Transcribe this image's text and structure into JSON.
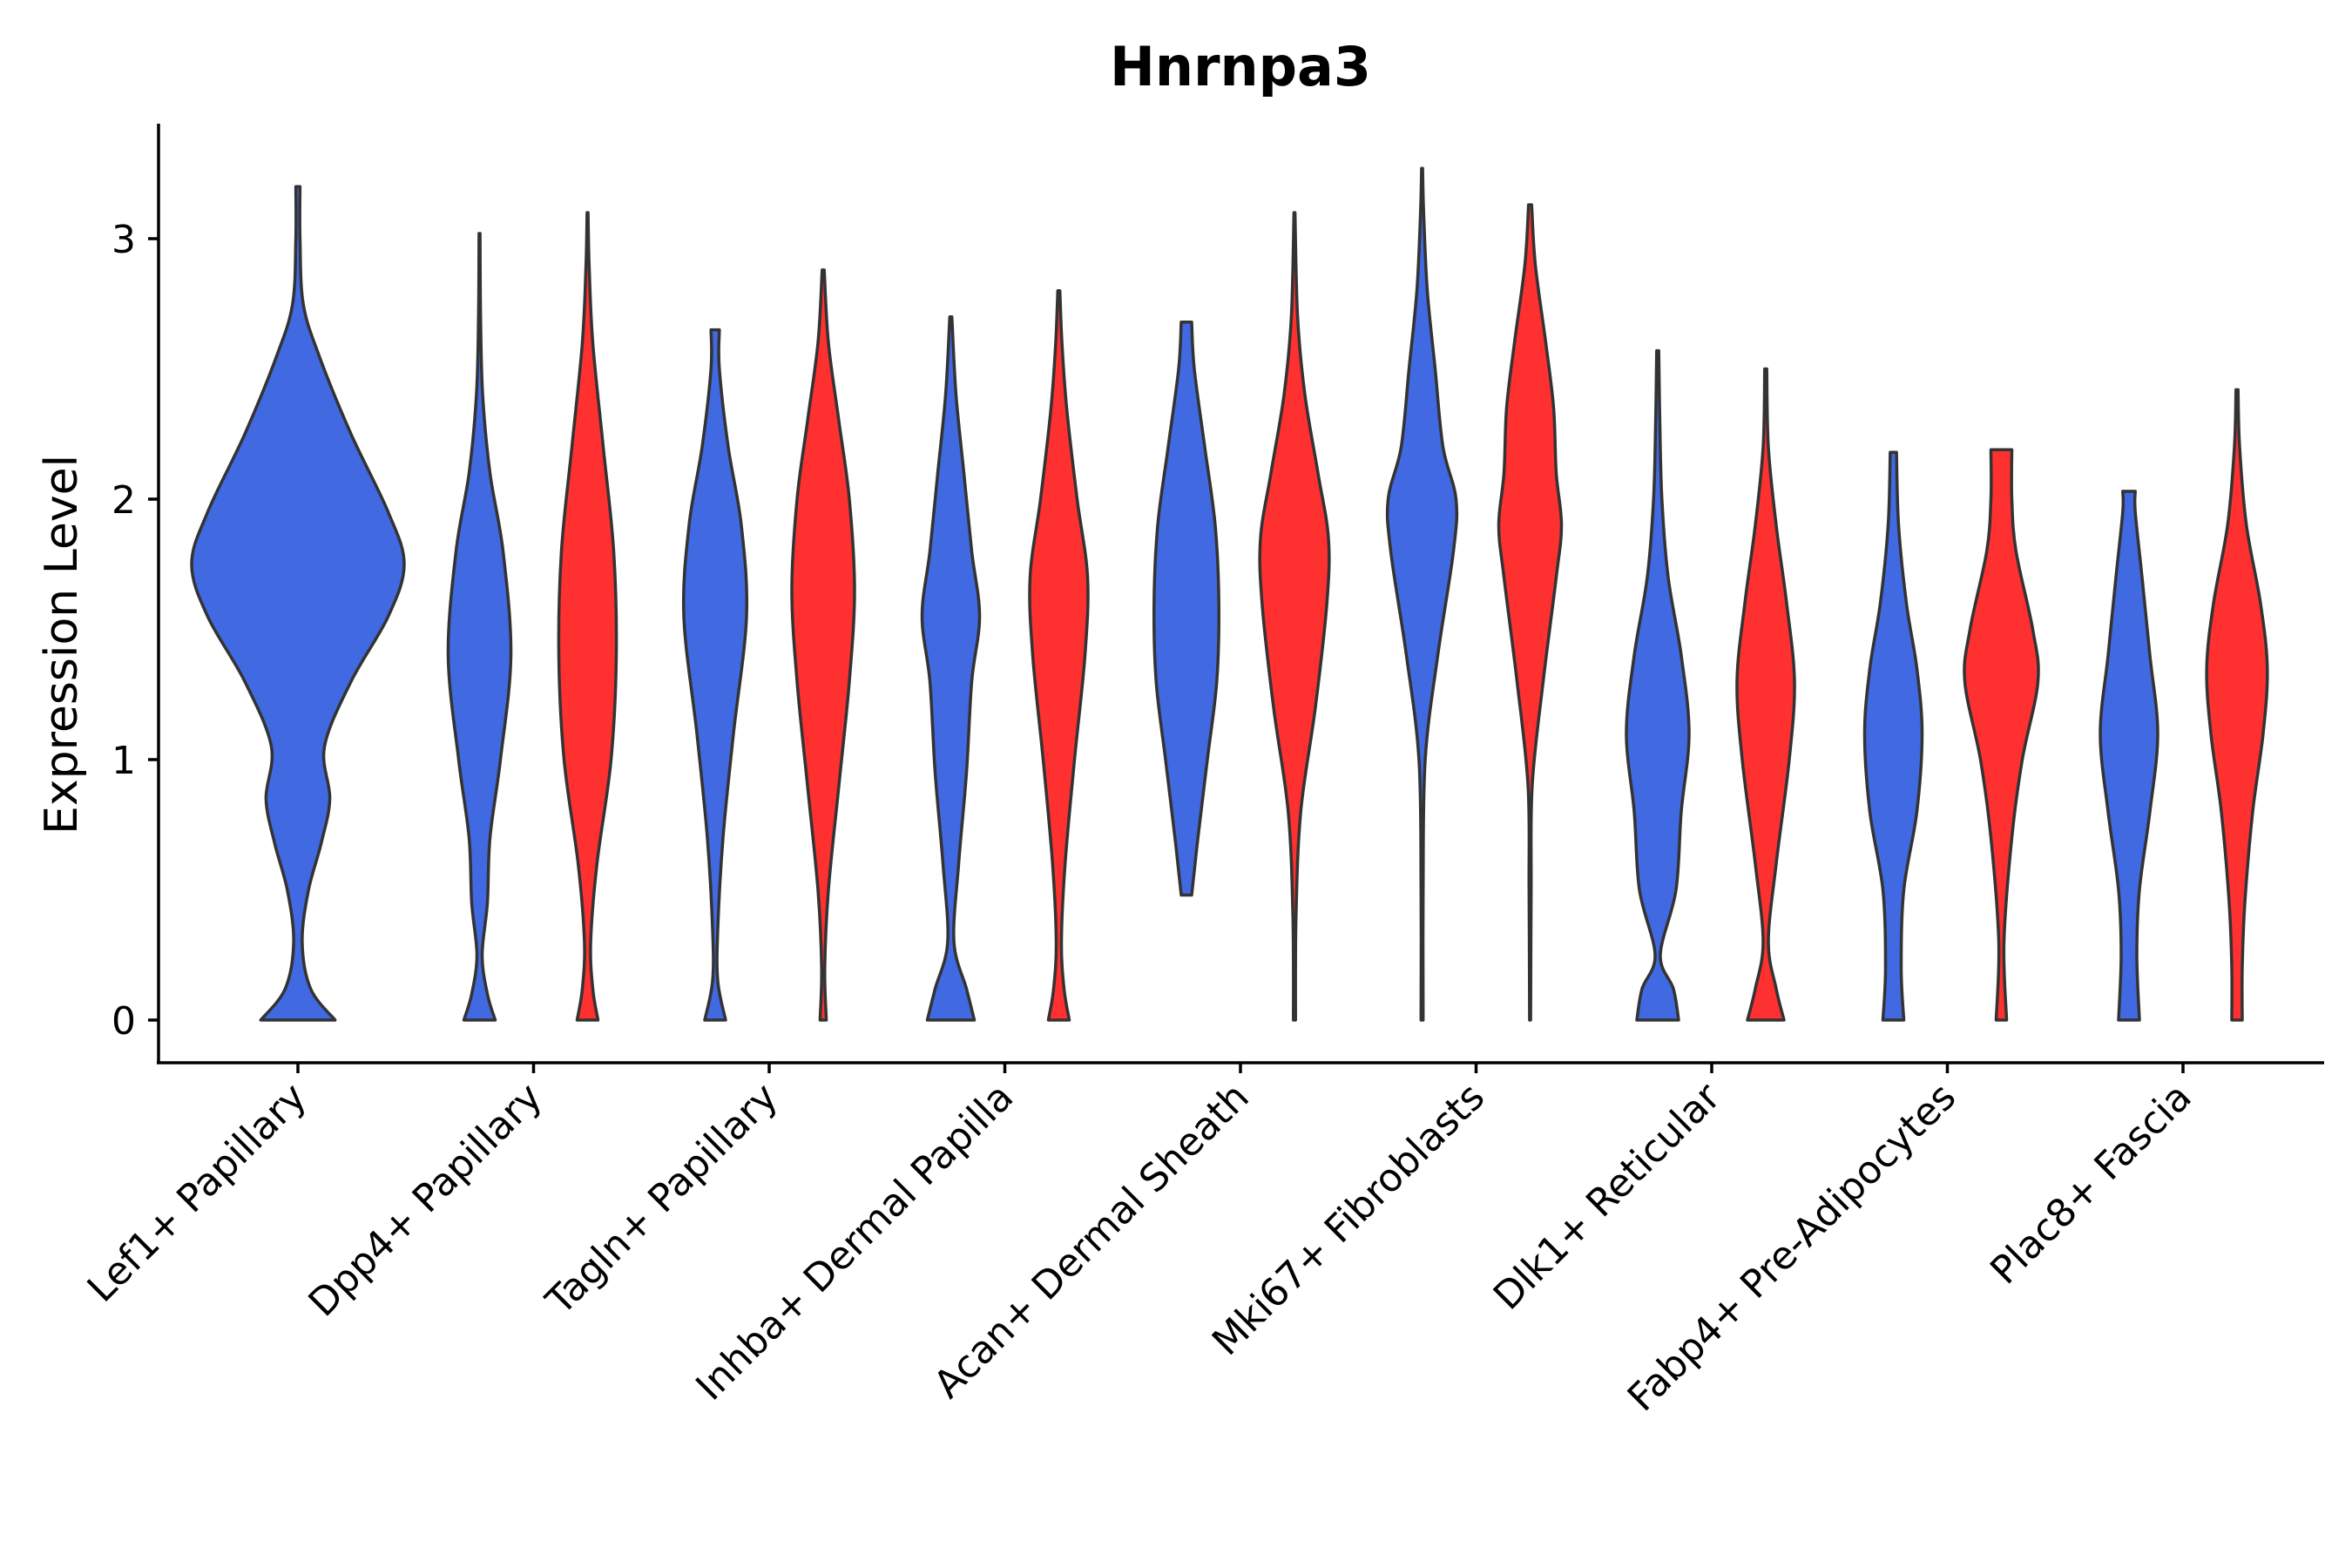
{
  "chart_data": {
    "type": "violin",
    "title": "Hnrnpa3",
    "xlabel": "",
    "ylabel": "Expression Level",
    "ylim": [
      -0.17,
      3.45
    ],
    "yticks": [
      0,
      1,
      2,
      3
    ],
    "grid": false,
    "legend": "none",
    "colors": {
      "group_a": "#4169E1",
      "group_b": "#FF3030",
      "outline": "#333333"
    },
    "categories": [
      "Lef1+ Papillary",
      "Dpp4+ Papillary",
      "Tagln+ Papillary",
      "Inhba+ Dermal Papilla",
      "Acan+ Dermal Sheath",
      "Mki67+ Fibroblasts",
      "Dlk1+ Reticular",
      "Fabp4+ Pre-Adipocytes",
      "Plac8+ Fascia"
    ],
    "violins": [
      {
        "category": 0,
        "group": "a",
        "profile": [
          [
            0,
            0.35
          ],
          [
            0.12,
            0.12
          ],
          [
            0.3,
            0.04
          ],
          [
            0.5,
            0.1
          ],
          [
            0.68,
            0.22
          ],
          [
            0.85,
            0.3
          ],
          [
            1.05,
            0.25
          ],
          [
            1.3,
            0.5
          ],
          [
            1.55,
            0.85
          ],
          [
            1.75,
            1.0
          ],
          [
            1.95,
            0.85
          ],
          [
            2.25,
            0.5
          ],
          [
            2.55,
            0.2
          ],
          [
            2.75,
            0.05
          ],
          [
            3.0,
            0.02
          ],
          [
            3.2,
            0.02
          ]
        ]
      },
      {
        "category": 1,
        "group": "a",
        "profile": [
          [
            0,
            0.3
          ],
          [
            0.1,
            0.15
          ],
          [
            0.25,
            0.05
          ],
          [
            0.45,
            0.15
          ],
          [
            0.7,
            0.2
          ],
          [
            1.0,
            0.4
          ],
          [
            1.4,
            0.6
          ],
          [
            1.8,
            0.45
          ],
          [
            2.1,
            0.2
          ],
          [
            2.4,
            0.06
          ],
          [
            2.7,
            0.02
          ],
          [
            3.02,
            0.01
          ]
        ]
      },
      {
        "category": 1,
        "group": "b",
        "profile": [
          [
            0,
            0.2
          ],
          [
            0.12,
            0.1
          ],
          [
            0.3,
            0.06
          ],
          [
            0.6,
            0.18
          ],
          [
            1.0,
            0.45
          ],
          [
            1.4,
            0.55
          ],
          [
            1.8,
            0.5
          ],
          [
            2.2,
            0.3
          ],
          [
            2.6,
            0.1
          ],
          [
            2.9,
            0.03
          ],
          [
            3.1,
            0.01
          ]
        ]
      },
      {
        "category": 2,
        "group": "a",
        "profile": [
          [
            0,
            0.2
          ],
          [
            0.15,
            0.05
          ],
          [
            0.35,
            0.05
          ],
          [
            0.7,
            0.15
          ],
          [
            1.1,
            0.35
          ],
          [
            1.55,
            0.6
          ],
          [
            1.9,
            0.5
          ],
          [
            2.2,
            0.25
          ],
          [
            2.5,
            0.08
          ],
          [
            2.65,
            0.08
          ]
        ]
      },
      {
        "category": 2,
        "group": "b",
        "profile": [
          [
            0,
            0.06
          ],
          [
            0.2,
            0.03
          ],
          [
            0.5,
            0.1
          ],
          [
            0.9,
            0.3
          ],
          [
            1.3,
            0.5
          ],
          [
            1.65,
            0.6
          ],
          [
            2.0,
            0.5
          ],
          [
            2.3,
            0.3
          ],
          [
            2.6,
            0.1
          ],
          [
            2.88,
            0.02
          ]
        ]
      },
      {
        "category": 3,
        "group": "a",
        "profile": [
          [
            0,
            0.45
          ],
          [
            0.12,
            0.3
          ],
          [
            0.3,
            0.06
          ],
          [
            0.6,
            0.15
          ],
          [
            0.95,
            0.3
          ],
          [
            1.3,
            0.4
          ],
          [
            1.55,
            0.55
          ],
          [
            1.8,
            0.4
          ],
          [
            2.1,
            0.25
          ],
          [
            2.4,
            0.1
          ],
          [
            2.7,
            0.02
          ]
        ]
      },
      {
        "category": 3,
        "group": "b",
        "profile": [
          [
            0,
            0.2
          ],
          [
            0.12,
            0.1
          ],
          [
            0.3,
            0.05
          ],
          [
            0.6,
            0.12
          ],
          [
            1.0,
            0.3
          ],
          [
            1.4,
            0.5
          ],
          [
            1.7,
            0.55
          ],
          [
            2.0,
            0.35
          ],
          [
            2.35,
            0.15
          ],
          [
            2.6,
            0.06
          ],
          [
            2.8,
            0.02
          ]
        ]
      },
      {
        "category": 4,
        "group": "a",
        "profile": [
          [
            0.48,
            0.1
          ],
          [
            0.7,
            0.22
          ],
          [
            1.0,
            0.4
          ],
          [
            1.3,
            0.58
          ],
          [
            1.6,
            0.62
          ],
          [
            1.9,
            0.55
          ],
          [
            2.2,
            0.35
          ],
          [
            2.5,
            0.15
          ],
          [
            2.68,
            0.1
          ]
        ]
      },
      {
        "category": 4,
        "group": "b",
        "profile": [
          [
            0,
            0.02
          ],
          [
            0.4,
            0.03
          ],
          [
            0.8,
            0.12
          ],
          [
            1.2,
            0.4
          ],
          [
            1.6,
            0.62
          ],
          [
            1.85,
            0.65
          ],
          [
            2.1,
            0.45
          ],
          [
            2.4,
            0.2
          ],
          [
            2.7,
            0.06
          ],
          [
            3.1,
            0.01
          ]
        ]
      },
      {
        "category": 5,
        "group": "a",
        "profile": [
          [
            0,
            0.02
          ],
          [
            0.5,
            0.02
          ],
          [
            1.0,
            0.06
          ],
          [
            1.4,
            0.3
          ],
          [
            1.8,
            0.6
          ],
          [
            2.0,
            0.65
          ],
          [
            2.2,
            0.4
          ],
          [
            2.5,
            0.25
          ],
          [
            2.8,
            0.1
          ],
          [
            3.1,
            0.03
          ],
          [
            3.27,
            0.01
          ]
        ]
      },
      {
        "category": 5,
        "group": "b",
        "profile": [
          [
            0,
            0.01
          ],
          [
            0.5,
            0.02
          ],
          [
            0.9,
            0.04
          ],
          [
            1.3,
            0.25
          ],
          [
            1.7,
            0.5
          ],
          [
            1.9,
            0.6
          ],
          [
            2.1,
            0.5
          ],
          [
            2.35,
            0.45
          ],
          [
            2.6,
            0.3
          ],
          [
            2.9,
            0.1
          ],
          [
            3.13,
            0.03
          ]
        ]
      },
      {
        "category": 6,
        "group": "a",
        "profile": [
          [
            0,
            0.4
          ],
          [
            0.12,
            0.3
          ],
          [
            0.25,
            0.05
          ],
          [
            0.5,
            0.35
          ],
          [
            0.8,
            0.45
          ],
          [
            1.1,
            0.6
          ],
          [
            1.4,
            0.45
          ],
          [
            1.7,
            0.2
          ],
          [
            2.0,
            0.08
          ],
          [
            2.3,
            0.04
          ],
          [
            2.57,
            0.02
          ]
        ]
      },
      {
        "category": 6,
        "group": "b",
        "profile": [
          [
            0,
            0.35
          ],
          [
            0.12,
            0.2
          ],
          [
            0.3,
            0.05
          ],
          [
            0.6,
            0.2
          ],
          [
            1.0,
            0.45
          ],
          [
            1.3,
            0.55
          ],
          [
            1.6,
            0.4
          ],
          [
            1.9,
            0.2
          ],
          [
            2.2,
            0.05
          ],
          [
            2.5,
            0.02
          ]
        ]
      },
      {
        "category": 7,
        "group": "a",
        "profile": [
          [
            0,
            0.2
          ],
          [
            0.2,
            0.15
          ],
          [
            0.5,
            0.2
          ],
          [
            0.8,
            0.45
          ],
          [
            1.1,
            0.55
          ],
          [
            1.35,
            0.45
          ],
          [
            1.6,
            0.25
          ],
          [
            1.9,
            0.1
          ],
          [
            2.18,
            0.06
          ]
        ]
      },
      {
        "category": 7,
        "group": "b",
        "profile": [
          [
            0,
            0.1
          ],
          [
            0.3,
            0.05
          ],
          [
            0.7,
            0.2
          ],
          [
            1.0,
            0.4
          ],
          [
            1.3,
            0.7
          ],
          [
            1.5,
            0.6
          ],
          [
            1.8,
            0.28
          ],
          [
            2.0,
            0.2
          ],
          [
            2.19,
            0.2
          ]
        ]
      },
      {
        "category": 8,
        "group": "a",
        "profile": [
          [
            0,
            0.2
          ],
          [
            0.25,
            0.15
          ],
          [
            0.5,
            0.2
          ],
          [
            0.8,
            0.4
          ],
          [
            1.1,
            0.55
          ],
          [
            1.4,
            0.4
          ],
          [
            1.7,
            0.25
          ],
          [
            1.95,
            0.12
          ],
          [
            2.03,
            0.12
          ]
        ]
      },
      {
        "category": 8,
        "group": "b",
        "profile": [
          [
            0,
            0.1
          ],
          [
            0.2,
            0.1
          ],
          [
            0.45,
            0.15
          ],
          [
            0.8,
            0.3
          ],
          [
            1.1,
            0.5
          ],
          [
            1.35,
            0.58
          ],
          [
            1.6,
            0.45
          ],
          [
            1.9,
            0.18
          ],
          [
            2.2,
            0.05
          ],
          [
            2.42,
            0.02
          ]
        ]
      }
    ]
  }
}
